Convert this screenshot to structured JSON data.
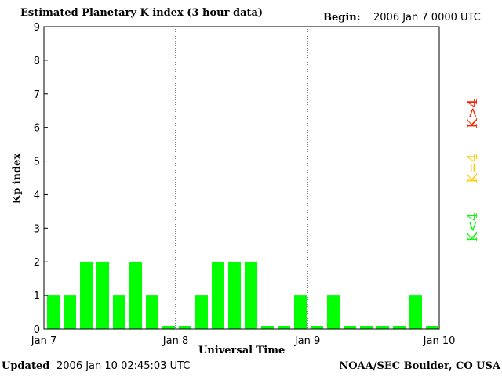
{
  "header": {
    "title": "Estimated Planetary K index (3 hour data)",
    "begin_label": "Begin:",
    "begin_value": "2006 Jan 7 0000 UTC"
  },
  "footer": {
    "updated_label": "Updated",
    "updated_value": "2006 Jan 10 02:45:03 UTC",
    "org": "NOAA/SEC Boulder, CO USA"
  },
  "chart_data": {
    "type": "bar",
    "title": "Estimated Planetary K index (3 hour data)",
    "xlabel": "Universal Time",
    "ylabel": "Kp index",
    "ylim": [
      0,
      9
    ],
    "yticks": [
      "0",
      "1",
      "2",
      "3",
      "4",
      "5",
      "6",
      "7",
      "8",
      "9"
    ],
    "xticks": [
      "Jan 7",
      "Jan 8",
      "Jan 9",
      "Jan 10"
    ],
    "grid": false,
    "bar_color": "#00ff00",
    "values": [
      1,
      1,
      2,
      2,
      1,
      2,
      1,
      0,
      0,
      1,
      2,
      2,
      2,
      0,
      0,
      1,
      0,
      1,
      0,
      0,
      0,
      0,
      1,
      0
    ],
    "legend": [
      {
        "label": "K<4",
        "color": "#00ff00"
      },
      {
        "label": "K=4",
        "color": "#ffcc00"
      },
      {
        "label": "K>4",
        "color": "#ff2200"
      }
    ]
  }
}
